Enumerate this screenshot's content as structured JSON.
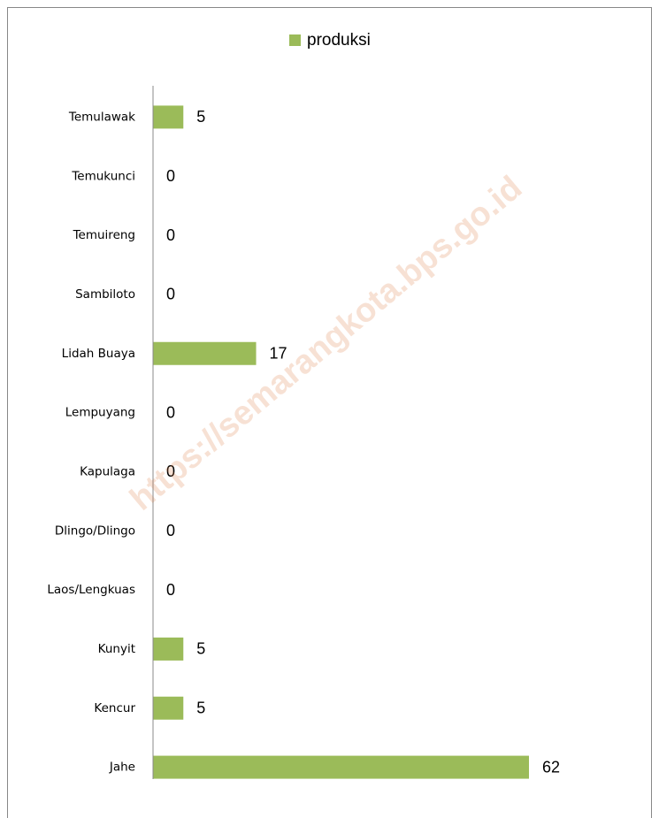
{
  "chart_data": {
    "type": "bar",
    "orientation": "horizontal",
    "categories": [
      "Temulawak",
      "Temukunci",
      "Temuireng",
      "Sambiloto",
      "Lidah Buaya",
      "Lempuyang",
      "Kapulaga",
      "Dlingo/Dlingo",
      "Laos/Lengkuas",
      "Kunyit",
      "Kencur",
      "Jahe"
    ],
    "series": [
      {
        "name": "produksi",
        "color": "#9bbb59",
        "values": [
          5,
          0,
          0,
          0,
          17,
          0,
          0,
          0,
          0,
          5,
          5,
          62
        ]
      }
    ],
    "xlim": [
      0,
      70
    ],
    "legend": "top",
    "watermark": "https://semarangkota.bps.go.id"
  }
}
